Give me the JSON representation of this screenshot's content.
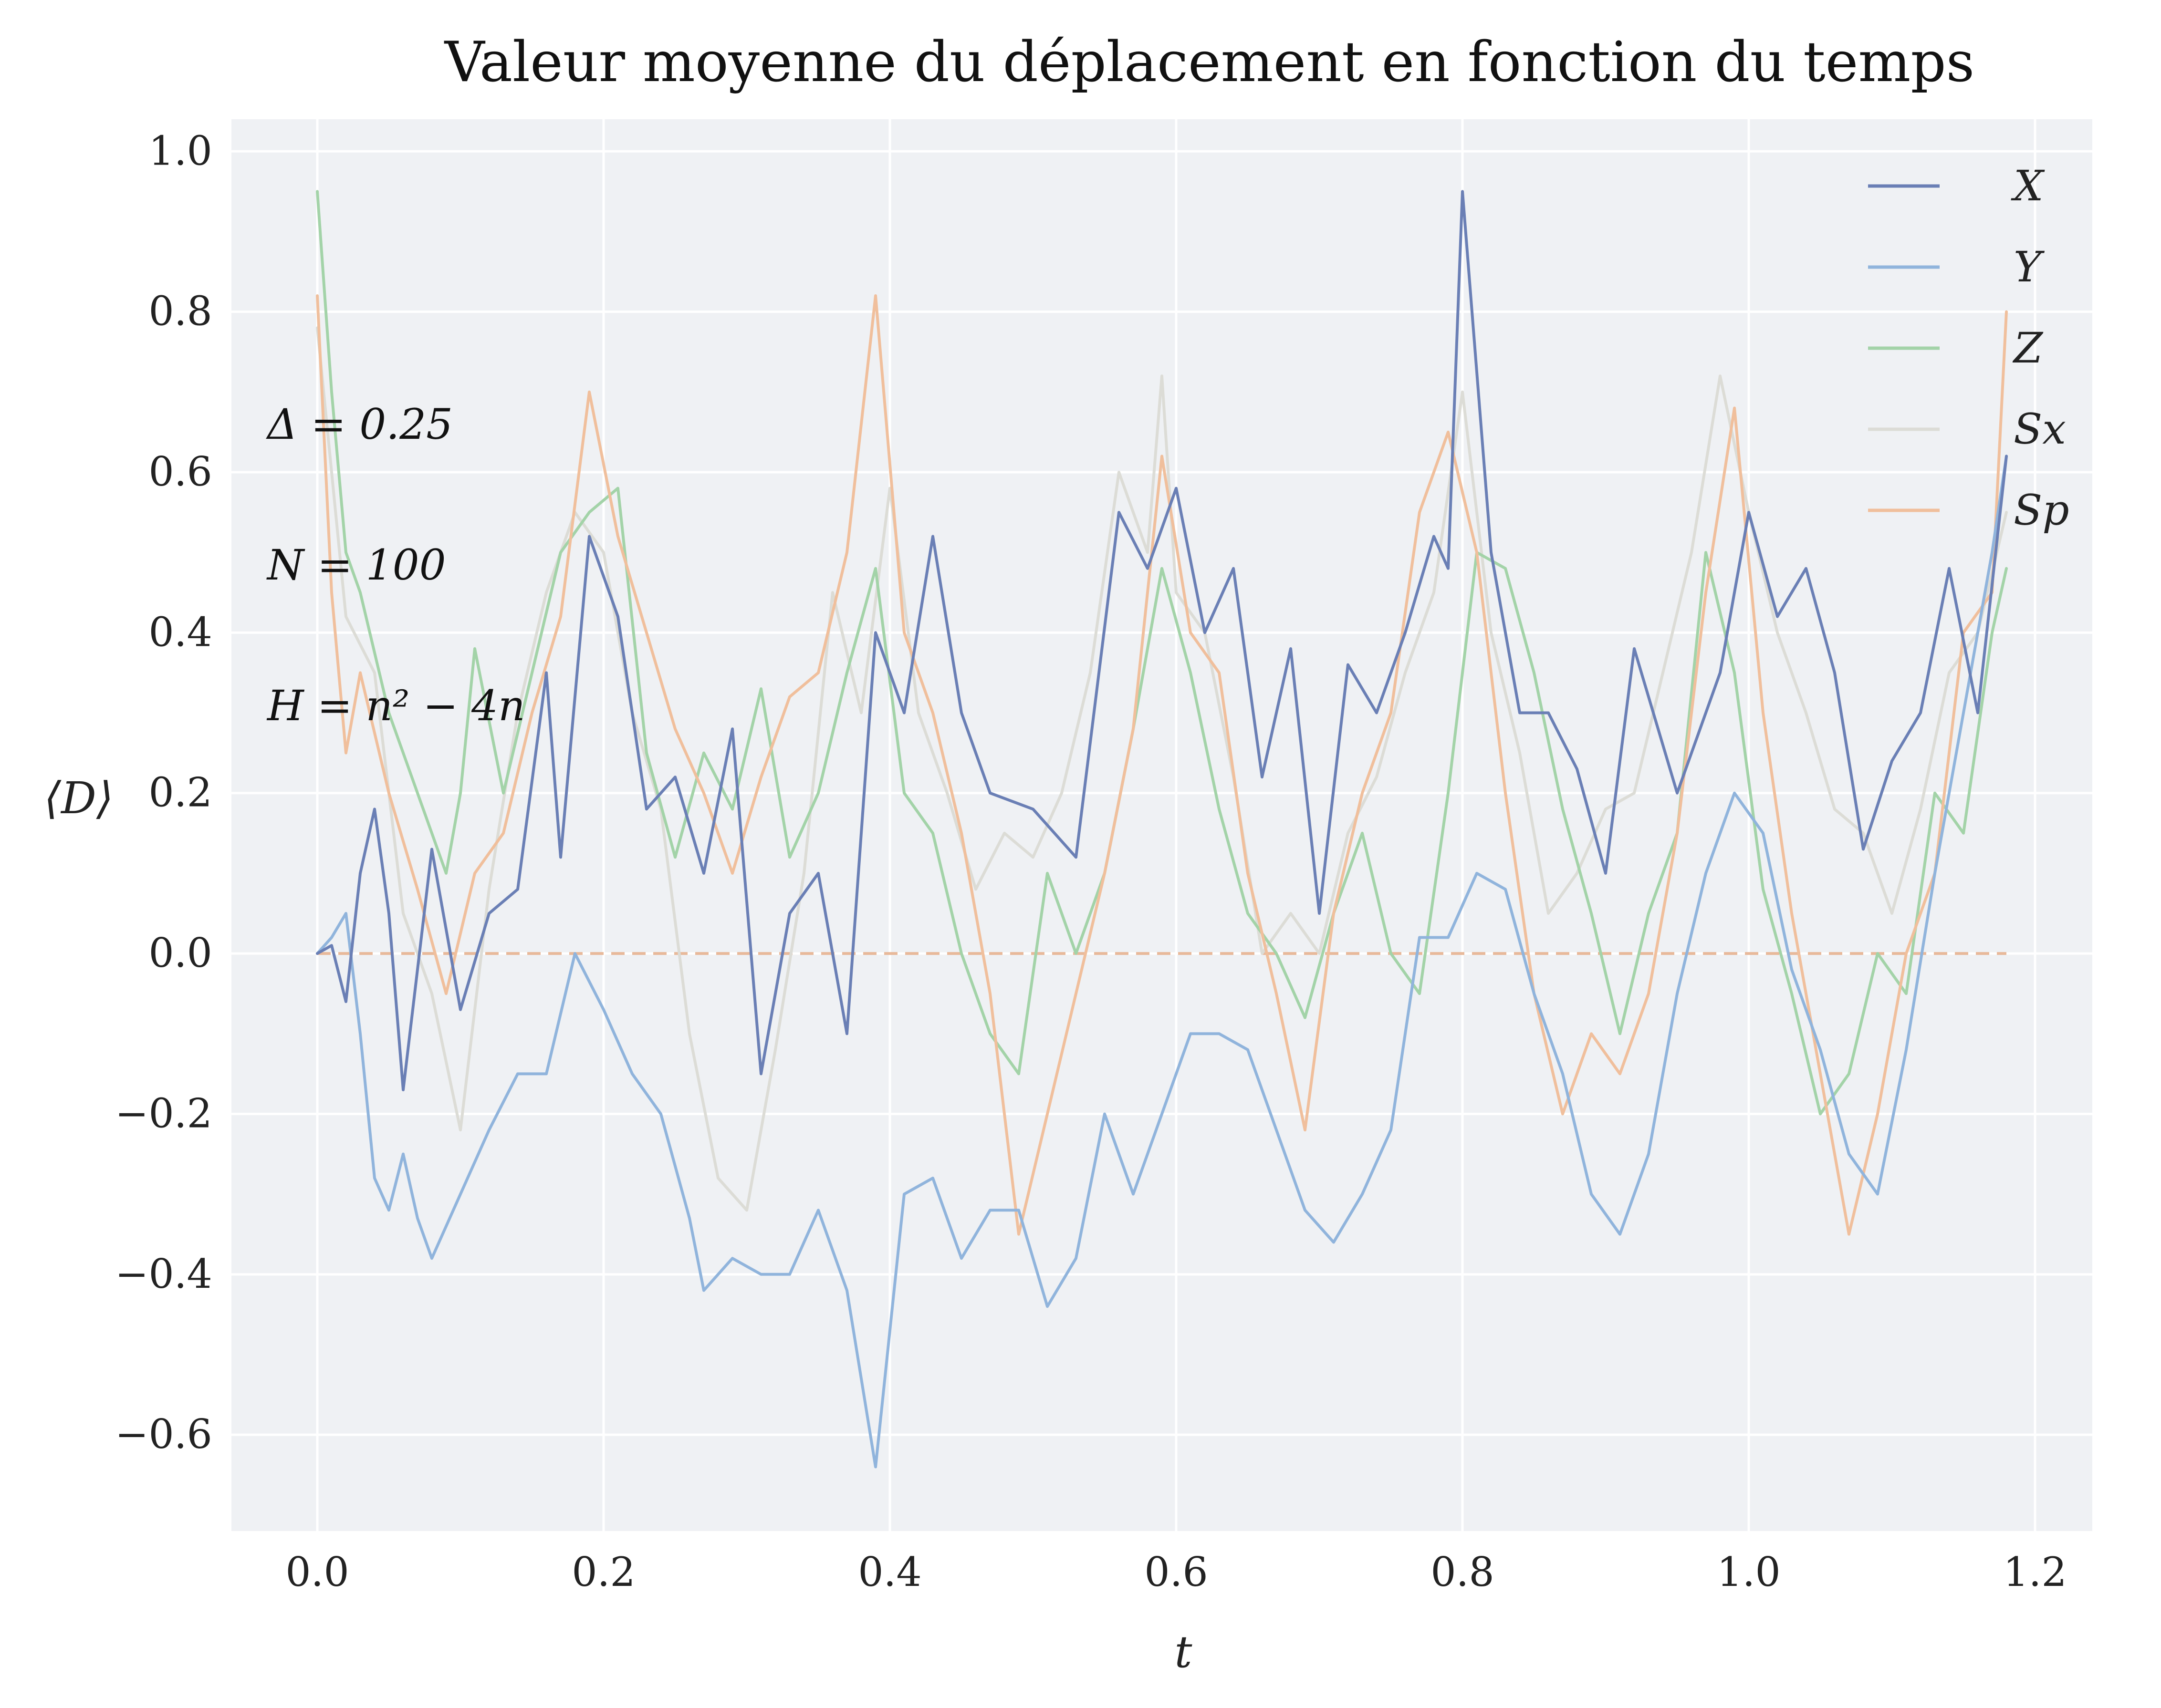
{
  "chart_data": {
    "type": "line",
    "title": "Valeur moyenne du déplacement en fonction du temps",
    "xlabel": "t",
    "ylabel": "⟨D⟩",
    "xlim": [
      -0.06,
      1.24
    ],
    "ylim": [
      -0.72,
      1.04
    ],
    "xticks": [
      0.0,
      0.2,
      0.4,
      0.6,
      0.8,
      1.0,
      1.2
    ],
    "xtick_labels": [
      "0.0",
      "0.2",
      "0.4",
      "0.6",
      "0.8",
      "1.0",
      "1.2"
    ],
    "yticks": [
      1.0,
      0.8,
      0.6,
      0.4,
      0.2,
      0.0,
      -0.2,
      -0.4,
      -0.6
    ],
    "ytick_labels": [
      "1.0",
      "0.8",
      "0.6",
      "0.4",
      "0.2",
      "0.0",
      "−0.2",
      "−0.4",
      "−0.6"
    ],
    "grid": true,
    "legend_position": "top-right",
    "annotations": [
      "Δ = 0.25",
      "N = 100",
      "H = n² − 4n"
    ],
    "baseline": {
      "y": 0.0,
      "style": "dashed",
      "color": "#e8b99a"
    },
    "series": [
      {
        "name": "X",
        "color": "#6a7fb5",
        "x": [
          0.0,
          0.01,
          0.02,
          0.03,
          0.04,
          0.05,
          0.06,
          0.08,
          0.1,
          0.12,
          0.14,
          0.16,
          0.17,
          0.19,
          0.21,
          0.23,
          0.25,
          0.27,
          0.29,
          0.31,
          0.33,
          0.35,
          0.37,
          0.39,
          0.41,
          0.43,
          0.45,
          0.47,
          0.5,
          0.53,
          0.56,
          0.58,
          0.6,
          0.62,
          0.64,
          0.66,
          0.68,
          0.7,
          0.72,
          0.74,
          0.76,
          0.78,
          0.79,
          0.8,
          0.82,
          0.84,
          0.86,
          0.88,
          0.9,
          0.92,
          0.95,
          0.98,
          1.0,
          1.02,
          1.04,
          1.06,
          1.08,
          1.1,
          1.12,
          1.14,
          1.16,
          1.18
        ],
        "y": [
          0.0,
          0.01,
          -0.06,
          0.1,
          0.18,
          0.05,
          -0.17,
          0.13,
          -0.07,
          0.05,
          0.08,
          0.35,
          0.12,
          0.52,
          0.42,
          0.18,
          0.22,
          0.1,
          0.28,
          -0.15,
          0.05,
          0.1,
          -0.1,
          0.4,
          0.3,
          0.52,
          0.3,
          0.2,
          0.18,
          0.12,
          0.55,
          0.48,
          0.58,
          0.4,
          0.48,
          0.22,
          0.38,
          0.05,
          0.36,
          0.3,
          0.4,
          0.52,
          0.48,
          0.95,
          0.5,
          0.3,
          0.3,
          0.23,
          0.1,
          0.38,
          0.2,
          0.35,
          0.55,
          0.42,
          0.48,
          0.35,
          0.13,
          0.24,
          0.3,
          0.48,
          0.3,
          0.62
        ]
      },
      {
        "name": "Y",
        "color": "#90b4dc",
        "x": [
          0.0,
          0.01,
          0.02,
          0.03,
          0.04,
          0.05,
          0.06,
          0.07,
          0.08,
          0.1,
          0.12,
          0.14,
          0.16,
          0.18,
          0.2,
          0.22,
          0.24,
          0.26,
          0.27,
          0.29,
          0.31,
          0.33,
          0.35,
          0.37,
          0.39,
          0.41,
          0.43,
          0.45,
          0.47,
          0.49,
          0.51,
          0.53,
          0.55,
          0.57,
          0.59,
          0.61,
          0.63,
          0.65,
          0.67,
          0.69,
          0.71,
          0.73,
          0.75,
          0.77,
          0.79,
          0.81,
          0.83,
          0.85,
          0.87,
          0.89,
          0.91,
          0.93,
          0.95,
          0.97,
          0.99,
          1.01,
          1.03,
          1.05,
          1.07,
          1.09,
          1.11,
          1.13,
          1.15,
          1.17,
          1.18
        ],
        "y": [
          0.0,
          0.02,
          0.05,
          -0.1,
          -0.28,
          -0.32,
          -0.25,
          -0.33,
          -0.38,
          -0.3,
          -0.22,
          -0.15,
          -0.15,
          0.0,
          -0.07,
          -0.15,
          -0.2,
          -0.33,
          -0.42,
          -0.38,
          -0.4,
          -0.4,
          -0.32,
          -0.42,
          -0.64,
          -0.3,
          -0.28,
          -0.38,
          -0.32,
          -0.32,
          -0.44,
          -0.38,
          -0.2,
          -0.3,
          -0.2,
          -0.1,
          -0.1,
          -0.12,
          -0.22,
          -0.32,
          -0.36,
          -0.3,
          -0.22,
          0.02,
          0.02,
          0.1,
          0.08,
          -0.05,
          -0.15,
          -0.3,
          -0.35,
          -0.25,
          -0.05,
          0.1,
          0.2,
          0.15,
          -0.02,
          -0.12,
          -0.25,
          -0.3,
          -0.12,
          0.1,
          0.3,
          0.5,
          0.62
        ]
      },
      {
        "name": "Z",
        "color": "#a3d3a8",
        "x": [
          0.0,
          0.01,
          0.02,
          0.03,
          0.05,
          0.07,
          0.09,
          0.1,
          0.11,
          0.13,
          0.15,
          0.17,
          0.19,
          0.21,
          0.23,
          0.25,
          0.27,
          0.29,
          0.31,
          0.33,
          0.35,
          0.37,
          0.39,
          0.41,
          0.43,
          0.45,
          0.47,
          0.49,
          0.51,
          0.53,
          0.55,
          0.57,
          0.59,
          0.61,
          0.63,
          0.65,
          0.67,
          0.69,
          0.71,
          0.73,
          0.75,
          0.77,
          0.79,
          0.81,
          0.83,
          0.85,
          0.87,
          0.89,
          0.91,
          0.93,
          0.95,
          0.97,
          0.99,
          1.01,
          1.03,
          1.05,
          1.07,
          1.09,
          1.11,
          1.13,
          1.15,
          1.17,
          1.18
        ],
        "y": [
          0.95,
          0.7,
          0.5,
          0.45,
          0.3,
          0.2,
          0.1,
          0.2,
          0.38,
          0.2,
          0.35,
          0.5,
          0.55,
          0.58,
          0.25,
          0.12,
          0.25,
          0.18,
          0.33,
          0.12,
          0.2,
          0.35,
          0.48,
          0.2,
          0.15,
          0.0,
          -0.1,
          -0.15,
          0.1,
          0.0,
          0.1,
          0.28,
          0.48,
          0.35,
          0.18,
          0.05,
          0.0,
          -0.08,
          0.05,
          0.15,
          0.0,
          -0.05,
          0.2,
          0.5,
          0.48,
          0.35,
          0.18,
          0.05,
          -0.1,
          0.05,
          0.15,
          0.5,
          0.35,
          0.08,
          -0.05,
          -0.2,
          -0.15,
          0.0,
          -0.05,
          0.2,
          0.15,
          0.4,
          0.48
        ]
      },
      {
        "name": "Sx",
        "color": "#dcdcd6",
        "x": [
          0.0,
          0.02,
          0.04,
          0.06,
          0.08,
          0.1,
          0.12,
          0.14,
          0.16,
          0.18,
          0.2,
          0.22,
          0.24,
          0.26,
          0.28,
          0.3,
          0.32,
          0.34,
          0.36,
          0.38,
          0.4,
          0.42,
          0.44,
          0.46,
          0.48,
          0.5,
          0.52,
          0.54,
          0.56,
          0.58,
          0.59,
          0.6,
          0.62,
          0.64,
          0.66,
          0.68,
          0.7,
          0.72,
          0.74,
          0.76,
          0.78,
          0.8,
          0.82,
          0.84,
          0.86,
          0.88,
          0.9,
          0.92,
          0.94,
          0.96,
          0.98,
          1.0,
          1.02,
          1.04,
          1.06,
          1.08,
          1.1,
          1.12,
          1.14,
          1.16,
          1.18
        ],
        "y": [
          0.78,
          0.42,
          0.35,
          0.05,
          -0.05,
          -0.22,
          0.08,
          0.3,
          0.45,
          0.55,
          0.5,
          0.3,
          0.18,
          -0.1,
          -0.28,
          -0.32,
          -0.12,
          0.1,
          0.45,
          0.3,
          0.58,
          0.3,
          0.2,
          0.08,
          0.15,
          0.12,
          0.2,
          0.35,
          0.6,
          0.5,
          0.72,
          0.45,
          0.4,
          0.22,
          0.0,
          0.05,
          0.0,
          0.15,
          0.22,
          0.35,
          0.45,
          0.7,
          0.4,
          0.25,
          0.05,
          0.1,
          0.18,
          0.2,
          0.35,
          0.5,
          0.72,
          0.55,
          0.4,
          0.3,
          0.18,
          0.15,
          0.05,
          0.18,
          0.35,
          0.4,
          0.55
        ]
      },
      {
        "name": "Sp",
        "color": "#f0bf9c",
        "x": [
          0.0,
          0.01,
          0.02,
          0.03,
          0.05,
          0.07,
          0.09,
          0.11,
          0.13,
          0.15,
          0.17,
          0.19,
          0.21,
          0.23,
          0.25,
          0.27,
          0.29,
          0.31,
          0.33,
          0.35,
          0.37,
          0.39,
          0.41,
          0.43,
          0.45,
          0.47,
          0.49,
          0.51,
          0.53,
          0.55,
          0.57,
          0.59,
          0.61,
          0.63,
          0.65,
          0.67,
          0.69,
          0.71,
          0.73,
          0.75,
          0.77,
          0.79,
          0.81,
          0.83,
          0.85,
          0.87,
          0.89,
          0.91,
          0.93,
          0.95,
          0.97,
          0.99,
          1.01,
          1.03,
          1.05,
          1.07,
          1.09,
          1.11,
          1.13,
          1.15,
          1.17,
          1.18
        ],
        "y": [
          0.82,
          0.45,
          0.25,
          0.35,
          0.2,
          0.08,
          -0.05,
          0.1,
          0.15,
          0.3,
          0.42,
          0.7,
          0.52,
          0.4,
          0.28,
          0.2,
          0.1,
          0.22,
          0.32,
          0.35,
          0.5,
          0.82,
          0.4,
          0.3,
          0.15,
          -0.05,
          -0.35,
          -0.2,
          -0.05,
          0.1,
          0.28,
          0.62,
          0.4,
          0.35,
          0.1,
          -0.05,
          -0.22,
          0.05,
          0.2,
          0.3,
          0.55,
          0.65,
          0.5,
          0.2,
          -0.05,
          -0.2,
          -0.1,
          -0.15,
          -0.05,
          0.15,
          0.45,
          0.68,
          0.3,
          0.05,
          -0.15,
          -0.35,
          -0.2,
          0.0,
          0.1,
          0.4,
          0.45,
          0.8
        ]
      }
    ]
  }
}
